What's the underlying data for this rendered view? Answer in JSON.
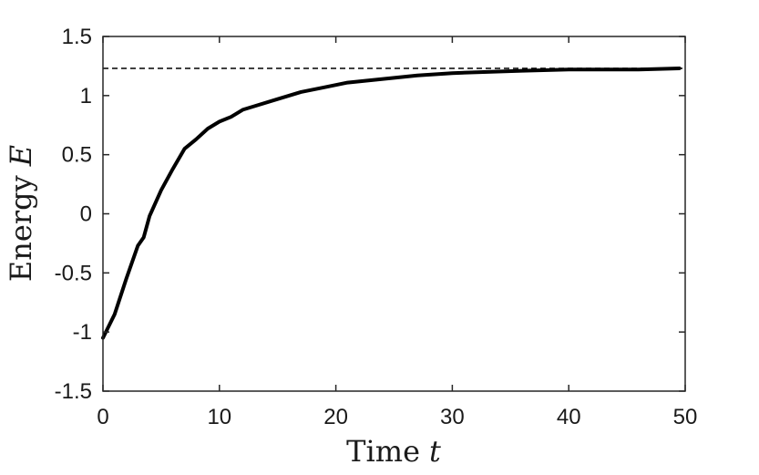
{
  "chart_data": {
    "type": "line",
    "title": "",
    "xlabel": "Time",
    "xlabel_var": "t",
    "ylabel": "Energy",
    "ylabel_var": "E",
    "xlim": [
      0,
      50
    ],
    "ylim": [
      -1.5,
      1.5
    ],
    "xticks": [
      0,
      10,
      20,
      30,
      40,
      50
    ],
    "xtick_labels": [
      "0",
      "10",
      "20",
      "30",
      "40",
      "50"
    ],
    "yticks": [
      -1.5,
      -1,
      -0.5,
      0,
      0.5,
      1,
      1.5
    ],
    "ytick_labels": [
      "-1.5",
      "-1",
      "-0.5",
      "0",
      "0.5",
      "1",
      "1.5"
    ],
    "grid": false,
    "legend": "none",
    "series": [
      {
        "style": "solid",
        "color": "#000000",
        "x": [
          0,
          1,
          2,
          3,
          3.5,
          4,
          5,
          6,
          7,
          8,
          9,
          10,
          11,
          12,
          13,
          15,
          17,
          19,
          21,
          23,
          25,
          27,
          30,
          33,
          36,
          40,
          43,
          46,
          49.5
        ],
        "y": [
          -1.05,
          -0.85,
          -0.55,
          -0.27,
          -0.2,
          -0.02,
          0.2,
          0.38,
          0.55,
          0.63,
          0.72,
          0.78,
          0.82,
          0.88,
          0.91,
          0.97,
          1.03,
          1.07,
          1.11,
          1.13,
          1.15,
          1.17,
          1.19,
          1.2,
          1.21,
          1.22,
          1.22,
          1.22,
          1.23
        ]
      },
      {
        "style": "dashed",
        "color": "#000000",
        "x": [
          0,
          50
        ],
        "y": [
          1.23,
          1.23
        ]
      }
    ]
  }
}
